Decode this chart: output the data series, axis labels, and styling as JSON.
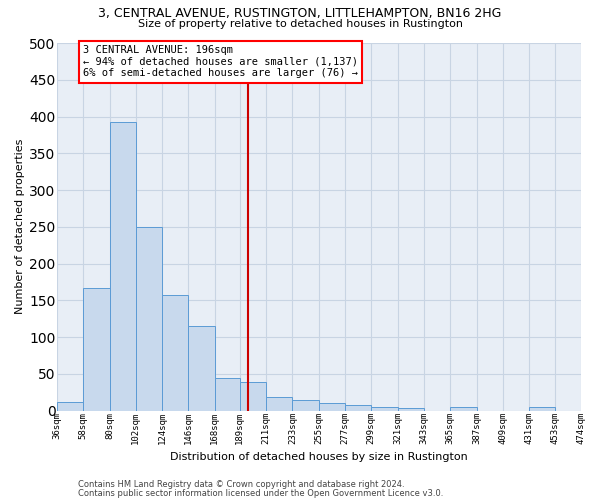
{
  "title": "3, CENTRAL AVENUE, RUSTINGTON, LITTLEHAMPTON, BN16 2HG",
  "subtitle": "Size of property relative to detached houses in Rustington",
  "xlabel": "Distribution of detached houses by size in Rustington",
  "ylabel": "Number of detached properties",
  "bar_color": "#c8d9ed",
  "bar_edge_color": "#5b9bd5",
  "grid_color": "#c8d4e3",
  "background_color": "#e8eef6",
  "vline_color": "#cc0000",
  "property_size": 196,
  "bin_edges": [
    36,
    58,
    80,
    102,
    124,
    146,
    168,
    189,
    211,
    233,
    255,
    277,
    299,
    321,
    343,
    365,
    387,
    409,
    431,
    453,
    474
  ],
  "bar_heights": [
    12,
    167,
    392,
    250,
    157,
    115,
    44,
    39,
    18,
    15,
    10,
    7,
    5,
    3,
    0,
    5,
    0,
    0,
    5,
    0
  ],
  "tick_labels": [
    "36sqm",
    "58sqm",
    "80sqm",
    "102sqm",
    "124sqm",
    "146sqm",
    "168sqm",
    "189sqm",
    "211sqm",
    "233sqm",
    "255sqm",
    "277sqm",
    "299sqm",
    "321sqm",
    "343sqm",
    "365sqm",
    "387sqm",
    "409sqm",
    "431sqm",
    "453sqm",
    "474sqm"
  ],
  "ylim": [
    0,
    500
  ],
  "yticks": [
    0,
    50,
    100,
    150,
    200,
    250,
    300,
    350,
    400,
    450,
    500
  ],
  "annotation_title": "3 CENTRAL AVENUE: 196sqm",
  "annotation_line1": "← 94% of detached houses are smaller (1,137)",
  "annotation_line2": "6% of semi-detached houses are larger (76) →",
  "footer_line1": "Contains HM Land Registry data © Crown copyright and database right 2024.",
  "footer_line2": "Contains public sector information licensed under the Open Government Licence v3.0.",
  "title_fontsize": 9,
  "subtitle_fontsize": 8,
  "xlabel_fontsize": 8,
  "ylabel_fontsize": 8,
  "tick_fontsize": 6.5,
  "ytick_fontsize": 7.5,
  "annotation_fontsize": 7.5,
  "footer_fontsize": 6
}
